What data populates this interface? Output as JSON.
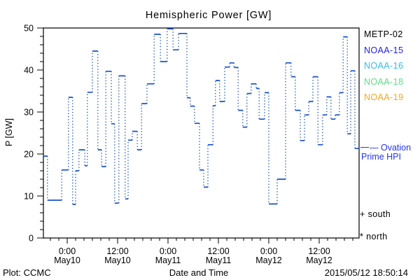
{
  "title": "Hemispheric Power [GW]",
  "colors": {
    "frame": "#000000",
    "line": "#1950d0",
    "metp02": "#000000",
    "noaa15": "#2020ee",
    "noaa16": "#33bbee",
    "noaa18": "#5ade82",
    "noaa19": "#f7a51b",
    "ovation": "#2336e6"
  },
  "legend": {
    "items": [
      {
        "label": "METP-02",
        "color_key": "metp02"
      },
      {
        "label": "NOAA-15",
        "color_key": "noaa15"
      },
      {
        "label": "NOAA-16",
        "color_key": "noaa16"
      },
      {
        "label": "NOAA-18",
        "color_key": "noaa18"
      },
      {
        "label": "NOAA-19",
        "color_key": "noaa19"
      }
    ]
  },
  "annotations": {
    "series_label_line1": "— Ovation",
    "series_label_line2": "Prime HPI",
    "south_marker": "+ south",
    "north_marker": "* north"
  },
  "footer": {
    "credit": "Plot: CCMC",
    "xlabel": "Date and Time",
    "timestamp": "2015/05/12 18:50:14"
  },
  "chart_data": {
    "type": "line",
    "style": "step-horizontal-solid-vertical-dotted",
    "title": "Hemispheric Power [GW]",
    "xlabel": "Date and Time",
    "ylabel": "P [GW]",
    "unit": "GW",
    "grid": false,
    "legend_position": "right-outside",
    "series_name": "Ovation Prime HPI",
    "ylim": [
      0,
      50
    ],
    "yticks": [
      0,
      10,
      20,
      30,
      40,
      50
    ],
    "ytick_labels": [
      "0",
      "10",
      "20",
      "30",
      "40",
      "50"
    ],
    "y_minor_step": 2,
    "x_range_hours": [
      -5.67,
      69.5
    ],
    "x_hours_epoch": "2015-05-10 00:00",
    "x_minor_step_hours": 2,
    "xticks": [
      {
        "hour": 0,
        "time": "0:00",
        "date": "May10"
      },
      {
        "hour": 12,
        "time": "12:00",
        "date": "May10"
      },
      {
        "hour": 24,
        "time": "0:00",
        "date": "May11"
      },
      {
        "hour": 36,
        "time": "12:00",
        "date": "May11"
      },
      {
        "hour": 48,
        "time": "0:00",
        "date": "May12"
      },
      {
        "hour": 60,
        "time": "12:00",
        "date": "May12"
      }
    ],
    "segments_format": [
      "t_start_hours",
      "t_end_hours",
      "power_gw"
    ],
    "segments": [
      [
        -5.7,
        -4.7,
        19.5
      ],
      [
        -4.7,
        -1.3,
        9.0
      ],
      [
        -1.3,
        0.3,
        16.2
      ],
      [
        0.3,
        1.3,
        33.5
      ],
      [
        1.3,
        2.0,
        8.0
      ],
      [
        2.0,
        2.8,
        16.0
      ],
      [
        2.8,
        4.2,
        21.0
      ],
      [
        4.2,
        4.8,
        17.2
      ],
      [
        4.8,
        6.0,
        34.7
      ],
      [
        6.0,
        7.3,
        44.5
      ],
      [
        7.3,
        8.2,
        21.0
      ],
      [
        8.2,
        9.2,
        17.0
      ],
      [
        9.2,
        10.5,
        39.7
      ],
      [
        10.5,
        11.3,
        27.2
      ],
      [
        11.3,
        12.3,
        8.3
      ],
      [
        12.3,
        13.8,
        38.6
      ],
      [
        13.8,
        14.5,
        9.3
      ],
      [
        14.5,
        15.5,
        23.3
      ],
      [
        15.5,
        16.7,
        25.4
      ],
      [
        16.7,
        17.7,
        21.0
      ],
      [
        17.7,
        19.0,
        32.0
      ],
      [
        19.0,
        20.7,
        36.7
      ],
      [
        20.7,
        22.2,
        48.5
      ],
      [
        22.2,
        23.8,
        42.0
      ],
      [
        23.8,
        25.2,
        49.8
      ],
      [
        25.2,
        26.5,
        44.8
      ],
      [
        26.5,
        28.5,
        48.7
      ],
      [
        28.5,
        29.3,
        33.4
      ],
      [
        29.3,
        30.3,
        31.4
      ],
      [
        30.3,
        31.5,
        27.3
      ],
      [
        31.5,
        32.5,
        16.2
      ],
      [
        32.5,
        33.5,
        12.1
      ],
      [
        33.5,
        34.7,
        22.2
      ],
      [
        34.7,
        35.3,
        31.5
      ],
      [
        35.3,
        36.3,
        37.5
      ],
      [
        36.3,
        37.5,
        32.5
      ],
      [
        37.5,
        38.7,
        40.7
      ],
      [
        38.7,
        39.7,
        41.7
      ],
      [
        39.7,
        40.7,
        40.6
      ],
      [
        40.7,
        41.8,
        30.4
      ],
      [
        41.8,
        42.8,
        26.4
      ],
      [
        42.8,
        43.8,
        34.4
      ],
      [
        43.8,
        45.0,
        36.7
      ],
      [
        45.0,
        45.7,
        35.6
      ],
      [
        45.7,
        47.0,
        28.3
      ],
      [
        47.0,
        48.0,
        34.6
      ],
      [
        48.0,
        50.0,
        8.1
      ],
      [
        50.0,
        52.0,
        14.0
      ],
      [
        52.0,
        53.3,
        41.7
      ],
      [
        53.3,
        54.3,
        38.4
      ],
      [
        54.3,
        55.5,
        30.4
      ],
      [
        55.5,
        56.5,
        23.2
      ],
      [
        56.5,
        57.5,
        29.3
      ],
      [
        57.5,
        58.5,
        32.5
      ],
      [
        58.5,
        59.7,
        38.4
      ],
      [
        59.7,
        60.8,
        22.2
      ],
      [
        60.8,
        61.8,
        29.3
      ],
      [
        61.8,
        62.8,
        33.6
      ],
      [
        62.8,
        63.8,
        28.3
      ],
      [
        63.8,
        64.8,
        29.3
      ],
      [
        64.8,
        65.7,
        34.6
      ],
      [
        65.7,
        66.7,
        47.9
      ],
      [
        66.7,
        67.5,
        24.8
      ],
      [
        67.5,
        68.5,
        39.8
      ],
      [
        68.5,
        69.5,
        21.3
      ]
    ]
  }
}
